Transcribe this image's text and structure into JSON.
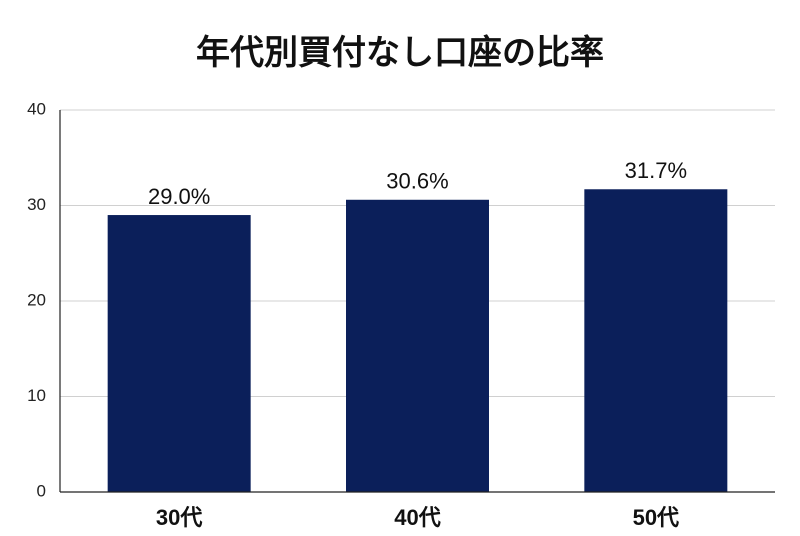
{
  "chart_data": {
    "type": "bar",
    "title": "年代別買付なし口座の比率",
    "categories": [
      "30代",
      "40代",
      "50代"
    ],
    "values": [
      29.0,
      30.6,
      31.7
    ],
    "value_labels": [
      "29.0%",
      "30.6%",
      "31.7%"
    ],
    "color": "#0b1f5a",
    "ylim": [
      0,
      40
    ],
    "yticks": [
      0,
      10,
      20,
      30,
      40
    ],
    "grid": true
  }
}
